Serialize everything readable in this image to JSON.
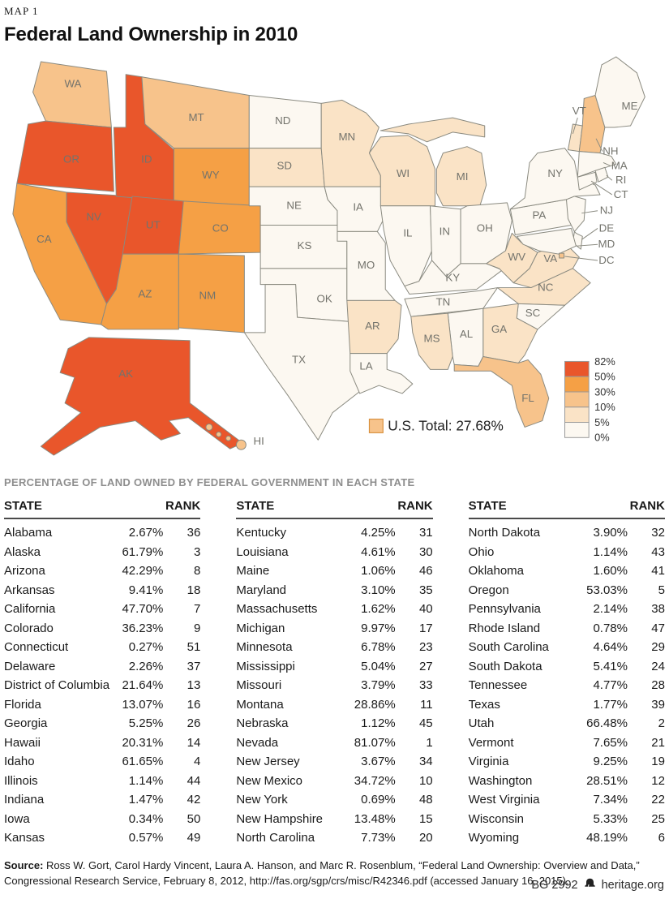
{
  "kicker": "MAP 1",
  "title": "Federal Land Ownership in 2010",
  "section_title": "PERCENTAGE OF LAND OWNED BY FEDERAL GOVERNMENT IN EACH STATE",
  "table_header": {
    "state": "STATE",
    "rank": "RANK"
  },
  "us_total_label": "U.S. Total: 27.68%",
  "legend": {
    "labels_top_to_bottom": [
      "82%",
      "50%",
      "30%",
      "10%",
      "5%",
      "0%"
    ],
    "colors_top_to_bottom": [
      "#E9562B",
      "#F5A045",
      "#F7C38B",
      "#FAE3C6",
      "#FCF8F1"
    ],
    "swatch_border": "#999999",
    "us_total_swatch_fill": "#F7C38B",
    "us_total_swatch_border": "#D9913F"
  },
  "source": {
    "label": "Source:",
    "text": " Ross W. Gort, Carol Hardy Vincent, Laura A. Hanson, and Marc R. Rosenblum, “Federal Land Ownership: Overview and Data,” Congressional Research Service, February 8, 2012, http://fas.org/sgp/crs/misc/R42346.pdf (accessed January 16, 2015)."
  },
  "brand": {
    "bg": "BG 2992",
    "site": "heritage.org"
  },
  "chart_data": {
    "type": "choropleth",
    "title": "Federal Land Ownership in 2010",
    "unit": "percent of land owned by federal government",
    "us_total": 27.68,
    "legend_breaks": [
      0,
      5,
      10,
      30,
      50,
      82
    ],
    "states": [
      {
        "abbr": "AL",
        "name": "Alabama",
        "value": 2.67,
        "rank": 36
      },
      {
        "abbr": "AK",
        "name": "Alaska",
        "value": 61.79,
        "rank": 3
      },
      {
        "abbr": "AZ",
        "name": "Arizona",
        "value": 42.29,
        "rank": 8
      },
      {
        "abbr": "AR",
        "name": "Arkansas",
        "value": 9.41,
        "rank": 18
      },
      {
        "abbr": "CA",
        "name": "California",
        "value": 47.7,
        "rank": 7
      },
      {
        "abbr": "CO",
        "name": "Colorado",
        "value": 36.23,
        "rank": 9
      },
      {
        "abbr": "CT",
        "name": "Connecticut",
        "value": 0.27,
        "rank": 51
      },
      {
        "abbr": "DE",
        "name": "Delaware",
        "value": 2.26,
        "rank": 37
      },
      {
        "abbr": "DC",
        "name": "District of Columbia",
        "value": 21.64,
        "rank": 13
      },
      {
        "abbr": "FL",
        "name": "Florida",
        "value": 13.07,
        "rank": 16
      },
      {
        "abbr": "GA",
        "name": "Georgia",
        "value": 5.25,
        "rank": 26
      },
      {
        "abbr": "HI",
        "name": "Hawaii",
        "value": 20.31,
        "rank": 14
      },
      {
        "abbr": "ID",
        "name": "Idaho",
        "value": 61.65,
        "rank": 4
      },
      {
        "abbr": "IL",
        "name": "Illinois",
        "value": 1.14,
        "rank": 44
      },
      {
        "abbr": "IN",
        "name": "Indiana",
        "value": 1.47,
        "rank": 42
      },
      {
        "abbr": "IA",
        "name": "Iowa",
        "value": 0.34,
        "rank": 50
      },
      {
        "abbr": "KS",
        "name": "Kansas",
        "value": 0.57,
        "rank": 49
      },
      {
        "abbr": "KY",
        "name": "Kentucky",
        "value": 4.25,
        "rank": 31
      },
      {
        "abbr": "LA",
        "name": "Louisiana",
        "value": 4.61,
        "rank": 30
      },
      {
        "abbr": "ME",
        "name": "Maine",
        "value": 1.06,
        "rank": 46
      },
      {
        "abbr": "MD",
        "name": "Maryland",
        "value": 3.1,
        "rank": 35
      },
      {
        "abbr": "MA",
        "name": "Massachusetts",
        "value": 1.62,
        "rank": 40
      },
      {
        "abbr": "MI",
        "name": "Michigan",
        "value": 9.97,
        "rank": 17
      },
      {
        "abbr": "MN",
        "name": "Minnesota",
        "value": 6.78,
        "rank": 23
      },
      {
        "abbr": "MS",
        "name": "Mississippi",
        "value": 5.04,
        "rank": 27
      },
      {
        "abbr": "MO",
        "name": "Missouri",
        "value": 3.79,
        "rank": 33
      },
      {
        "abbr": "MT",
        "name": "Montana",
        "value": 28.86,
        "rank": 11
      },
      {
        "abbr": "NE",
        "name": "Nebraska",
        "value": 1.12,
        "rank": 45
      },
      {
        "abbr": "NV",
        "name": "Nevada",
        "value": 81.07,
        "rank": 1
      },
      {
        "abbr": "NJ",
        "name": "New Jersey",
        "value": 3.67,
        "rank": 34
      },
      {
        "abbr": "NM",
        "name": "New Mexico",
        "value": 34.72,
        "rank": 10
      },
      {
        "abbr": "NY",
        "name": "New York",
        "value": 0.69,
        "rank": 48
      },
      {
        "abbr": "NH",
        "name": "New Hampshire",
        "value": 13.48,
        "rank": 15
      },
      {
        "abbr": "NC",
        "name": "North Carolina",
        "value": 7.73,
        "rank": 20
      },
      {
        "abbr": "ND",
        "name": "North Dakota",
        "value": 3.9,
        "rank": 32
      },
      {
        "abbr": "OH",
        "name": "Ohio",
        "value": 1.14,
        "rank": 43
      },
      {
        "abbr": "OK",
        "name": "Oklahoma",
        "value": 1.6,
        "rank": 41
      },
      {
        "abbr": "OR",
        "name": "Oregon",
        "value": 53.03,
        "rank": 5
      },
      {
        "abbr": "PA",
        "name": "Pennsylvania",
        "value": 2.14,
        "rank": 38
      },
      {
        "abbr": "RI",
        "name": "Rhode Island",
        "value": 0.78,
        "rank": 47
      },
      {
        "abbr": "SC",
        "name": "South Carolina",
        "value": 4.64,
        "rank": 29
      },
      {
        "abbr": "SD",
        "name": "South Dakota",
        "value": 5.41,
        "rank": 24
      },
      {
        "abbr": "TN",
        "name": "Tennessee",
        "value": 4.77,
        "rank": 28
      },
      {
        "abbr": "TX",
        "name": "Texas",
        "value": 1.77,
        "rank": 39
      },
      {
        "abbr": "UT",
        "name": "Utah",
        "value": 66.48,
        "rank": 2
      },
      {
        "abbr": "VT",
        "name": "Vermont",
        "value": 7.65,
        "rank": 21
      },
      {
        "abbr": "VA",
        "name": "Virginia",
        "value": 9.25,
        "rank": 19
      },
      {
        "abbr": "WA",
        "name": "Washington",
        "value": 28.51,
        "rank": 12
      },
      {
        "abbr": "WV",
        "name": "West Virginia",
        "value": 7.34,
        "rank": 22
      },
      {
        "abbr": "WI",
        "name": "Wisconsin",
        "value": 5.33,
        "rank": 25
      },
      {
        "abbr": "WY",
        "name": "Wyoming",
        "value": 48.19,
        "rank": 6
      }
    ]
  }
}
